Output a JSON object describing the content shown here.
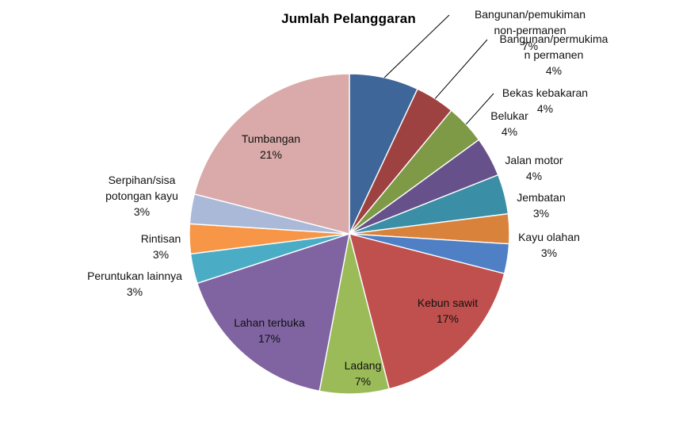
{
  "chart_data": {
    "type": "pie",
    "title": "Jumlah Pelanggaran",
    "categories": [
      "Bangunan/pemukiman non-permanen",
      "Bangunan/permukiman permanen",
      "Bekas kebakaran",
      "Belukar",
      "Jalan motor",
      "Jembatan",
      "Kayu olahan",
      "Kebun sawit",
      "Ladang",
      "Lahan terbuka",
      "Peruntukan lainnya",
      "Rintisan",
      "Serpihan/sisa potongan kayu",
      "Tumbangan"
    ],
    "values": [
      7,
      4,
      4,
      4,
      4,
      3,
      3,
      17,
      7,
      17,
      3,
      3,
      3,
      21
    ],
    "value_labels": [
      "7%",
      "4%",
      "4%",
      "4%",
      "4%",
      "3%",
      "3%",
      "17%",
      "7%",
      "17%",
      "3%",
      "3%",
      "3%",
      "21%"
    ],
    "label_lines": [
      [
        "Bangunan/pemukiman",
        "non-permanen",
        "7%"
      ],
      [
        "Bangunan/permukima",
        "n permanen",
        "4%"
      ],
      [
        "Bekas kebakaran",
        "4%"
      ],
      [
        "Belukar",
        "4%"
      ],
      [
        "Jalan motor",
        "4%"
      ],
      [
        "Jembatan",
        "3%"
      ],
      [
        "Kayu olahan",
        "3%"
      ],
      [
        "Kebun sawit",
        "17%"
      ],
      [
        "Ladang",
        "7%"
      ],
      [
        "Lahan terbuka",
        "17%"
      ],
      [
        "Peruntukan lainnya",
        "3%"
      ],
      [
        "Rintisan",
        "3%"
      ],
      [
        "Serpihan/sisa",
        "potongan kayu",
        "3%"
      ],
      [
        "Tumbangan",
        "21%"
      ]
    ],
    "colors": [
      "#3f6698",
      "#9e4141",
      "#7e9a46",
      "#67518a",
      "#3a8ea5",
      "#d9823b",
      "#4f7fc4",
      "#c0504d",
      "#9bbb59",
      "#8064a2",
      "#4bacc6",
      "#f79646",
      "#aab9d8",
      "#d9aaa9"
    ],
    "start": "12 o'clock",
    "direction": "clockwise",
    "legend": "none"
  }
}
